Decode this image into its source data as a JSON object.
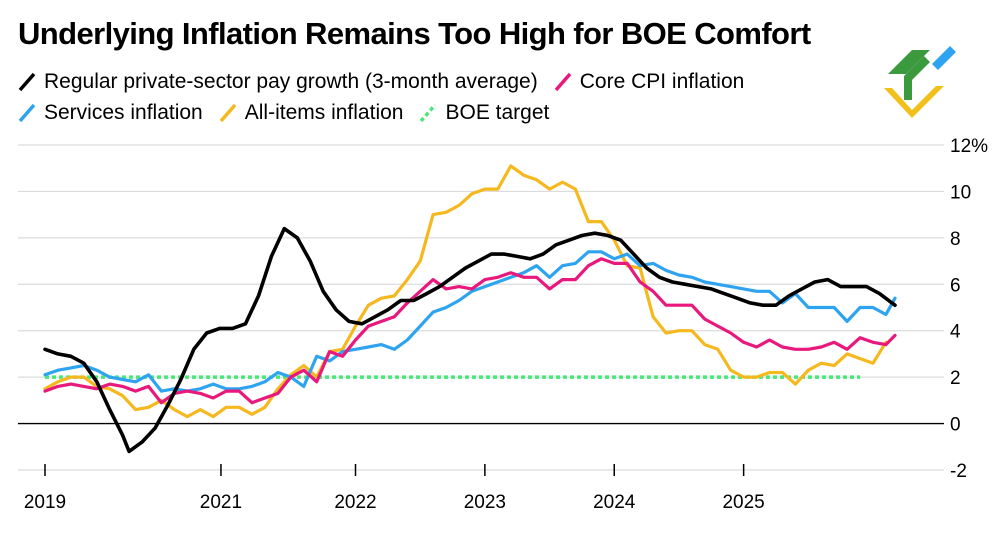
{
  "title": "Underlying Inflation Remains Too High for BOE Comfort",
  "legend": [
    [
      {
        "name": "legend-pay-growth",
        "label": "Regular private-sector pay growth (3-month average)",
        "color": "#000000",
        "dashed": false
      },
      {
        "name": "legend-core-cpi",
        "label": "Core CPI inflation",
        "color": "#e8187d",
        "dashed": false
      }
    ],
    [
      {
        "name": "legend-services",
        "label": "Services inflation",
        "color": "#2ea3ef",
        "dashed": false
      },
      {
        "name": "legend-all-items",
        "label": "All-items inflation",
        "color": "#f5b81f",
        "dashed": false
      },
      {
        "name": "legend-boe-target",
        "label": "BOE target",
        "color": "#4ae67a",
        "dashed": true
      }
    ]
  ],
  "logo": {
    "icon": "brand-logo-icon",
    "colors": [
      "#3c9a3e",
      "#f2c01b",
      "#2ea3ef"
    ]
  },
  "chart_data": {
    "type": "line",
    "title": "Underlying Inflation Remains Too High for BOE Comfort",
    "xlabel": "",
    "ylabel": "",
    "ylim": [
      -2,
      12
    ],
    "xlim": [
      2019.0,
      2025.65
    ],
    "y_ticks": [
      {
        "value": 12,
        "label": "12%"
      },
      {
        "value": 10,
        "label": "10"
      },
      {
        "value": 8,
        "label": "8"
      },
      {
        "value": 6,
        "label": "6"
      },
      {
        "value": 4,
        "label": "4"
      },
      {
        "value": 2,
        "label": "2"
      },
      {
        "value": 0,
        "label": "0"
      },
      {
        "value": -2,
        "label": "-2"
      }
    ],
    "x_ticks": [
      {
        "value": 2019.0,
        "label": "2019"
      },
      {
        "value": 2020.36,
        "label": "2021"
      },
      {
        "value": 2021.4,
        "label": "2022"
      },
      {
        "value": 2022.4,
        "label": "2023"
      },
      {
        "value": 2023.4,
        "label": "2024"
      },
      {
        "value": 2024.4,
        "label": "2025"
      }
    ],
    "series": [
      {
        "name": "BOE target",
        "color": "#4ae67a",
        "dashed": true,
        "width": 3.5,
        "points": [
          [
            2019.0,
            2
          ],
          [
            2025.3,
            2
          ]
        ]
      },
      {
        "name": "All-items inflation",
        "color": "#f5b81f",
        "dashed": false,
        "width": 3.2,
        "points": [
          [
            2019.0,
            1.5
          ],
          [
            2019.1,
            1.8
          ],
          [
            2019.2,
            2.0
          ],
          [
            2019.3,
            2.0
          ],
          [
            2019.4,
            1.6
          ],
          [
            2019.5,
            1.5
          ],
          [
            2019.6,
            1.2
          ],
          [
            2019.7,
            0.6
          ],
          [
            2019.8,
            0.7
          ],
          [
            2019.9,
            1.0
          ],
          [
            2020.0,
            0.6
          ],
          [
            2020.1,
            0.3
          ],
          [
            2020.2,
            0.6
          ],
          [
            2020.3,
            0.3
          ],
          [
            2020.4,
            0.7
          ],
          [
            2020.5,
            0.7
          ],
          [
            2020.6,
            0.4
          ],
          [
            2020.7,
            0.7
          ],
          [
            2020.8,
            1.5
          ],
          [
            2020.9,
            2.1
          ],
          [
            2021.0,
            2.5
          ],
          [
            2021.1,
            2.0
          ],
          [
            2021.2,
            3.1
          ],
          [
            2021.3,
            3.2
          ],
          [
            2021.4,
            4.2
          ],
          [
            2021.5,
            5.1
          ],
          [
            2021.6,
            5.4
          ],
          [
            2021.7,
            5.5
          ],
          [
            2021.8,
            6.2
          ],
          [
            2021.9,
            7.0
          ],
          [
            2022.0,
            9.0
          ],
          [
            2022.1,
            9.1
          ],
          [
            2022.2,
            9.4
          ],
          [
            2022.3,
            9.9
          ],
          [
            2022.4,
            10.1
          ],
          [
            2022.5,
            10.1
          ],
          [
            2022.6,
            11.1
          ],
          [
            2022.7,
            10.7
          ],
          [
            2022.8,
            10.5
          ],
          [
            2022.9,
            10.1
          ],
          [
            2023.0,
            10.4
          ],
          [
            2023.1,
            10.1
          ],
          [
            2023.2,
            8.7
          ],
          [
            2023.3,
            8.7
          ],
          [
            2023.4,
            7.9
          ],
          [
            2023.5,
            6.8
          ],
          [
            2023.6,
            6.7
          ],
          [
            2023.7,
            4.6
          ],
          [
            2023.8,
            3.9
          ],
          [
            2023.9,
            4.0
          ],
          [
            2024.0,
            4.0
          ],
          [
            2024.1,
            3.4
          ],
          [
            2024.2,
            3.2
          ],
          [
            2024.3,
            2.3
          ],
          [
            2024.4,
            2.0
          ],
          [
            2024.5,
            2.0
          ],
          [
            2024.6,
            2.2
          ],
          [
            2024.7,
            2.2
          ],
          [
            2024.8,
            1.7
          ],
          [
            2024.9,
            2.3
          ],
          [
            2025.0,
            2.6
          ],
          [
            2025.1,
            2.5
          ],
          [
            2025.2,
            3.0
          ],
          [
            2025.3,
            2.8
          ],
          [
            2025.4,
            2.6
          ],
          [
            2025.5,
            3.5
          ]
        ]
      },
      {
        "name": "Services inflation",
        "color": "#2ea3ef",
        "dashed": false,
        "width": 3.2,
        "points": [
          [
            2019.0,
            2.1
          ],
          [
            2019.1,
            2.3
          ],
          [
            2019.2,
            2.4
          ],
          [
            2019.3,
            2.5
          ],
          [
            2019.4,
            2.3
          ],
          [
            2019.5,
            2.0
          ],
          [
            2019.6,
            1.9
          ],
          [
            2019.7,
            1.8
          ],
          [
            2019.8,
            2.1
          ],
          [
            2019.9,
            1.4
          ],
          [
            2020.0,
            1.5
          ],
          [
            2020.1,
            1.4
          ],
          [
            2020.2,
            1.5
          ],
          [
            2020.3,
            1.7
          ],
          [
            2020.4,
            1.5
          ],
          [
            2020.5,
            1.5
          ],
          [
            2020.6,
            1.6
          ],
          [
            2020.7,
            1.8
          ],
          [
            2020.8,
            2.2
          ],
          [
            2020.9,
            2.0
          ],
          [
            2021.0,
            1.6
          ],
          [
            2021.1,
            2.9
          ],
          [
            2021.2,
            2.7
          ],
          [
            2021.3,
            3.1
          ],
          [
            2021.4,
            3.2
          ],
          [
            2021.5,
            3.3
          ],
          [
            2021.6,
            3.4
          ],
          [
            2021.7,
            3.2
          ],
          [
            2021.8,
            3.6
          ],
          [
            2021.9,
            4.2
          ],
          [
            2022.0,
            4.8
          ],
          [
            2022.1,
            5.0
          ],
          [
            2022.2,
            5.3
          ],
          [
            2022.3,
            5.7
          ],
          [
            2022.4,
            5.9
          ],
          [
            2022.5,
            6.1
          ],
          [
            2022.6,
            6.3
          ],
          [
            2022.7,
            6.5
          ],
          [
            2022.8,
            6.8
          ],
          [
            2022.9,
            6.3
          ],
          [
            2023.0,
            6.8
          ],
          [
            2023.1,
            6.9
          ],
          [
            2023.2,
            7.4
          ],
          [
            2023.3,
            7.4
          ],
          [
            2023.4,
            7.1
          ],
          [
            2023.5,
            7.3
          ],
          [
            2023.6,
            6.8
          ],
          [
            2023.7,
            6.9
          ],
          [
            2023.8,
            6.6
          ],
          [
            2023.9,
            6.4
          ],
          [
            2024.0,
            6.3
          ],
          [
            2024.1,
            6.1
          ],
          [
            2024.2,
            6.0
          ],
          [
            2024.3,
            5.9
          ],
          [
            2024.4,
            5.8
          ],
          [
            2024.5,
            5.7
          ],
          [
            2024.6,
            5.7
          ],
          [
            2024.7,
            5.2
          ],
          [
            2024.8,
            5.6
          ],
          [
            2024.9,
            5.0
          ],
          [
            2025.0,
            5.0
          ],
          [
            2025.1,
            5.0
          ],
          [
            2025.2,
            4.4
          ],
          [
            2025.3,
            5.0
          ],
          [
            2025.4,
            5.0
          ],
          [
            2025.5,
            4.7
          ],
          [
            2025.57,
            5.4
          ]
        ]
      },
      {
        "name": "Core CPI inflation",
        "color": "#e8187d",
        "dashed": false,
        "width": 3.2,
        "points": [
          [
            2019.0,
            1.4
          ],
          [
            2019.1,
            1.6
          ],
          [
            2019.2,
            1.7
          ],
          [
            2019.3,
            1.6
          ],
          [
            2019.4,
            1.5
          ],
          [
            2019.5,
            1.7
          ],
          [
            2019.6,
            1.6
          ],
          [
            2019.7,
            1.4
          ],
          [
            2019.8,
            1.6
          ],
          [
            2019.9,
            0.9
          ],
          [
            2020.0,
            1.3
          ],
          [
            2020.1,
            1.4
          ],
          [
            2020.2,
            1.3
          ],
          [
            2020.3,
            1.1
          ],
          [
            2020.4,
            1.4
          ],
          [
            2020.5,
            1.4
          ],
          [
            2020.6,
            0.9
          ],
          [
            2020.7,
            1.1
          ],
          [
            2020.8,
            1.3
          ],
          [
            2020.9,
            2.0
          ],
          [
            2021.0,
            2.3
          ],
          [
            2021.1,
            1.8
          ],
          [
            2021.2,
            3.1
          ],
          [
            2021.3,
            2.9
          ],
          [
            2021.4,
            3.6
          ],
          [
            2021.5,
            4.2
          ],
          [
            2021.6,
            4.4
          ],
          [
            2021.7,
            4.6
          ],
          [
            2021.8,
            5.2
          ],
          [
            2021.9,
            5.7
          ],
          [
            2022.0,
            6.2
          ],
          [
            2022.1,
            5.8
          ],
          [
            2022.2,
            5.9
          ],
          [
            2022.3,
            5.8
          ],
          [
            2022.4,
            6.2
          ],
          [
            2022.5,
            6.3
          ],
          [
            2022.6,
            6.5
          ],
          [
            2022.7,
            6.3
          ],
          [
            2022.8,
            6.3
          ],
          [
            2022.9,
            5.8
          ],
          [
            2023.0,
            6.2
          ],
          [
            2023.1,
            6.2
          ],
          [
            2023.2,
            6.8
          ],
          [
            2023.3,
            7.1
          ],
          [
            2023.4,
            6.9
          ],
          [
            2023.5,
            6.9
          ],
          [
            2023.6,
            6.1
          ],
          [
            2023.7,
            5.7
          ],
          [
            2023.8,
            5.1
          ],
          [
            2023.9,
            5.1
          ],
          [
            2024.0,
            5.1
          ],
          [
            2024.1,
            4.5
          ],
          [
            2024.2,
            4.2
          ],
          [
            2024.3,
            3.9
          ],
          [
            2024.4,
            3.5
          ],
          [
            2024.5,
            3.3
          ],
          [
            2024.6,
            3.6
          ],
          [
            2024.7,
            3.3
          ],
          [
            2024.8,
            3.2
          ],
          [
            2024.9,
            3.2
          ],
          [
            2025.0,
            3.3
          ],
          [
            2025.1,
            3.5
          ],
          [
            2025.2,
            3.2
          ],
          [
            2025.3,
            3.7
          ],
          [
            2025.4,
            3.5
          ],
          [
            2025.5,
            3.4
          ],
          [
            2025.57,
            3.8
          ]
        ]
      },
      {
        "name": "Regular private-sector pay growth (3-month average)",
        "color": "#000000",
        "dashed": false,
        "width": 3.6,
        "points": [
          [
            2019.0,
            3.2
          ],
          [
            2019.1,
            3.0
          ],
          [
            2019.2,
            2.9
          ],
          [
            2019.3,
            2.6
          ],
          [
            2019.4,
            1.8
          ],
          [
            2019.5,
            0.6
          ],
          [
            2019.6,
            -0.5
          ],
          [
            2019.65,
            -1.2
          ],
          [
            2019.75,
            -0.8
          ],
          [
            2019.85,
            -0.2
          ],
          [
            2019.95,
            0.8
          ],
          [
            2020.05,
            1.9
          ],
          [
            2020.15,
            3.2
          ],
          [
            2020.25,
            3.9
          ],
          [
            2020.35,
            4.1
          ],
          [
            2020.45,
            4.1
          ],
          [
            2020.55,
            4.3
          ],
          [
            2020.65,
            5.5
          ],
          [
            2020.75,
            7.2
          ],
          [
            2020.85,
            8.4
          ],
          [
            2020.95,
            8.0
          ],
          [
            2021.05,
            7.0
          ],
          [
            2021.15,
            5.7
          ],
          [
            2021.25,
            4.9
          ],
          [
            2021.35,
            4.4
          ],
          [
            2021.45,
            4.3
          ],
          [
            2021.55,
            4.6
          ],
          [
            2021.65,
            4.9
          ],
          [
            2021.75,
            5.3
          ],
          [
            2021.85,
            5.3
          ],
          [
            2021.95,
            5.6
          ],
          [
            2022.05,
            5.9
          ],
          [
            2022.15,
            6.3
          ],
          [
            2022.25,
            6.7
          ],
          [
            2022.35,
            7.0
          ],
          [
            2022.45,
            7.3
          ],
          [
            2022.55,
            7.3
          ],
          [
            2022.65,
            7.2
          ],
          [
            2022.75,
            7.1
          ],
          [
            2022.85,
            7.3
          ],
          [
            2022.95,
            7.7
          ],
          [
            2023.05,
            7.9
          ],
          [
            2023.15,
            8.1
          ],
          [
            2023.25,
            8.2
          ],
          [
            2023.35,
            8.1
          ],
          [
            2023.45,
            7.9
          ],
          [
            2023.55,
            7.3
          ],
          [
            2023.65,
            6.7
          ],
          [
            2023.75,
            6.3
          ],
          [
            2023.85,
            6.1
          ],
          [
            2023.95,
            6.0
          ],
          [
            2024.05,
            5.9
          ],
          [
            2024.15,
            5.8
          ],
          [
            2024.25,
            5.6
          ],
          [
            2024.35,
            5.4
          ],
          [
            2024.45,
            5.2
          ],
          [
            2024.55,
            5.1
          ],
          [
            2024.65,
            5.1
          ],
          [
            2024.75,
            5.5
          ],
          [
            2024.85,
            5.8
          ],
          [
            2024.95,
            6.1
          ],
          [
            2025.05,
            6.2
          ],
          [
            2025.15,
            5.9
          ],
          [
            2025.25,
            5.9
          ],
          [
            2025.35,
            5.9
          ],
          [
            2025.45,
            5.6
          ],
          [
            2025.57,
            5.1
          ]
        ]
      }
    ]
  }
}
